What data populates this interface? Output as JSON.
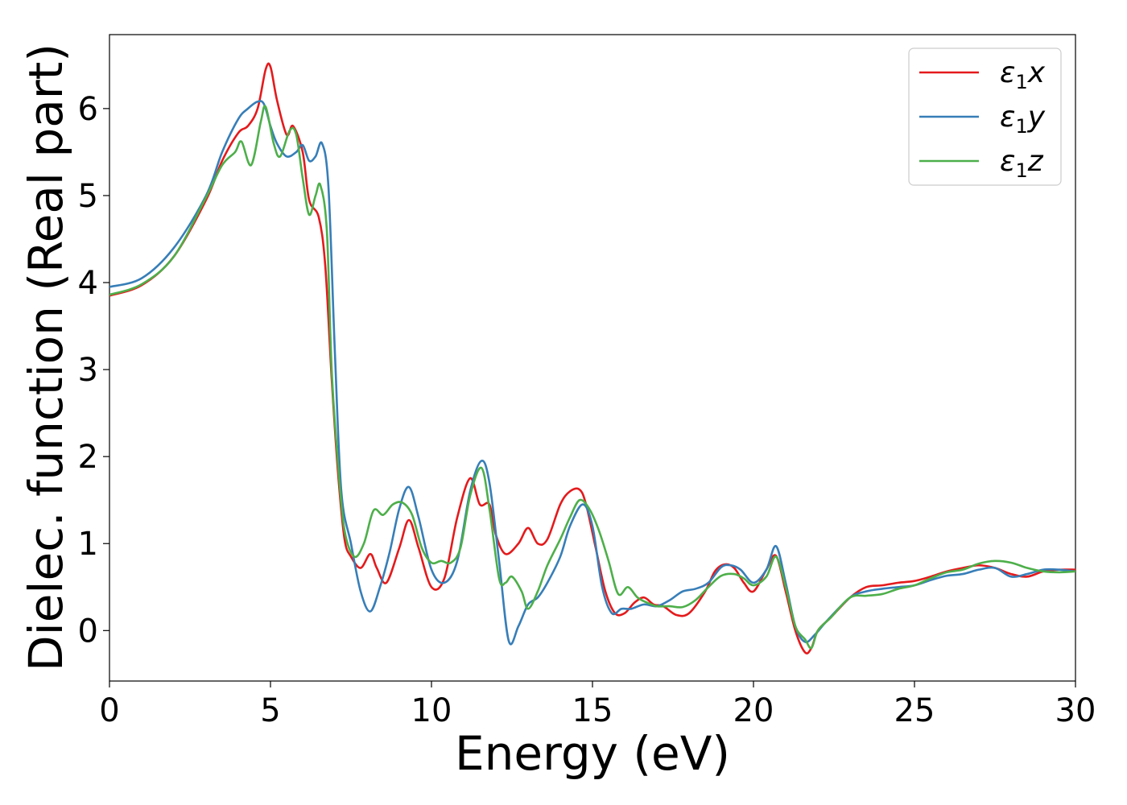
{
  "chart_data": {
    "type": "line",
    "title": "",
    "xlabel": "Energy (eV)",
    "ylabel": "Dielec. function (Real part)",
    "xlim": [
      0,
      30
    ],
    "ylim": [
      -0.58,
      6.85
    ],
    "xticks": [
      "0",
      "5",
      "10",
      "15",
      "20",
      "25",
      "30"
    ],
    "yticks": [
      "0",
      "1",
      "2",
      "3",
      "4",
      "5",
      "6"
    ],
    "grid": false,
    "legend_position": "top-right",
    "series": [
      {
        "name": "ε₁x",
        "legend": {
          "base": "ε",
          "sub": "1",
          "var": "x"
        },
        "color": "#e41a1c",
        "x": [
          0,
          1,
          2,
          3,
          3.5,
          4,
          4.3,
          4.6,
          4.85,
          5.0,
          5.2,
          5.5,
          5.7,
          6.0,
          6.2,
          6.5,
          6.7,
          6.9,
          7.1,
          7.3,
          7.5,
          7.8,
          8.1,
          8.3,
          8.6,
          9.0,
          9.3,
          9.6,
          10.0,
          10.4,
          10.8,
          11.2,
          11.5,
          11.8,
          12.0,
          12.3,
          12.7,
          13.0,
          13.3,
          13.6,
          14.0,
          14.3,
          14.6,
          14.8,
          15.1,
          15.4,
          15.7,
          16.0,
          16.3,
          16.6,
          16.9,
          17.2,
          17.6,
          18.0,
          18.5,
          18.8,
          19.1,
          19.4,
          19.7,
          20.0,
          20.4,
          20.7,
          21.0,
          21.3,
          21.6,
          21.8,
          22.0,
          22.4,
          23.0,
          23.5,
          24.0,
          24.5,
          25.0,
          25.5,
          26.0,
          26.5,
          27.0,
          27.5,
          28.0,
          28.5,
          29.0,
          29.5,
          30.0
        ],
        "y": [
          3.85,
          3.97,
          4.3,
          4.95,
          5.4,
          5.72,
          5.8,
          6.0,
          6.45,
          6.48,
          6.1,
          5.7,
          5.8,
          5.5,
          4.95,
          4.75,
          4.2,
          2.9,
          1.8,
          1.05,
          0.85,
          0.72,
          0.88,
          0.72,
          0.55,
          0.95,
          1.27,
          0.95,
          0.5,
          0.6,
          1.3,
          1.75,
          1.45,
          1.45,
          1.1,
          0.88,
          1.0,
          1.18,
          1.0,
          1.05,
          1.45,
          1.6,
          1.62,
          1.45,
          0.95,
          0.45,
          0.2,
          0.2,
          0.32,
          0.38,
          0.3,
          0.28,
          0.18,
          0.2,
          0.45,
          0.68,
          0.76,
          0.72,
          0.55,
          0.45,
          0.7,
          0.86,
          0.45,
          0.0,
          -0.25,
          -0.2,
          0.0,
          0.15,
          0.38,
          0.5,
          0.52,
          0.55,
          0.57,
          0.62,
          0.68,
          0.72,
          0.75,
          0.72,
          0.65,
          0.62,
          0.68,
          0.7,
          0.7
        ]
      },
      {
        "name": "ε₁y",
        "legend": {
          "base": "ε",
          "sub": "1",
          "var": "y"
        },
        "color": "#377eb8",
        "x": [
          0,
          1,
          2,
          3,
          3.5,
          4,
          4.3,
          4.6,
          4.8,
          5.0,
          5.2,
          5.5,
          5.8,
          6.0,
          6.2,
          6.4,
          6.6,
          6.8,
          7.0,
          7.2,
          7.5,
          7.8,
          8.1,
          8.4,
          8.7,
          9.0,
          9.3,
          9.6,
          10.0,
          10.4,
          10.8,
          11.2,
          11.55,
          11.8,
          12.1,
          12.4,
          12.7,
          13.0,
          13.3,
          13.6,
          14.0,
          14.3,
          14.7,
          15.0,
          15.3,
          15.6,
          15.9,
          16.2,
          16.6,
          17.0,
          17.4,
          17.8,
          18.2,
          18.6,
          19.0,
          19.3,
          19.6,
          20.0,
          20.4,
          20.7,
          21.0,
          21.3,
          21.6,
          21.9,
          22.3,
          23.0,
          23.5,
          24.0,
          24.5,
          25.0,
          25.5,
          26.0,
          26.5,
          27.0,
          27.5,
          28.0,
          28.5,
          29.0,
          29.5,
          30.0
        ],
        "y": [
          3.95,
          4.05,
          4.4,
          5.0,
          5.5,
          5.88,
          6.0,
          6.08,
          6.05,
          5.8,
          5.6,
          5.45,
          5.5,
          5.58,
          5.4,
          5.45,
          5.6,
          5.1,
          3.2,
          1.6,
          1.0,
          0.45,
          0.22,
          0.5,
          0.9,
          1.4,
          1.65,
          1.3,
          0.7,
          0.55,
          0.8,
          1.6,
          1.95,
          1.7,
          0.8,
          -0.12,
          0.05,
          0.3,
          0.38,
          0.55,
          0.85,
          1.2,
          1.45,
          1.2,
          0.5,
          0.2,
          0.25,
          0.25,
          0.3,
          0.28,
          0.35,
          0.45,
          0.48,
          0.55,
          0.73,
          0.75,
          0.7,
          0.55,
          0.7,
          0.97,
          0.55,
          0.05,
          -0.13,
          -0.05,
          0.12,
          0.38,
          0.45,
          0.48,
          0.5,
          0.52,
          0.58,
          0.63,
          0.65,
          0.7,
          0.72,
          0.62,
          0.65,
          0.7,
          0.7,
          0.68
        ]
      },
      {
        "name": "ε₁z",
        "legend": {
          "base": "ε",
          "sub": "1",
          "var": "z"
        },
        "color": "#4daf4a",
        "x": [
          0,
          1,
          2,
          3,
          3.5,
          3.9,
          4.1,
          4.4,
          4.7,
          4.85,
          5.1,
          5.3,
          5.6,
          5.8,
          6.0,
          6.2,
          6.4,
          6.55,
          6.75,
          6.9,
          7.1,
          7.3,
          7.6,
          7.9,
          8.2,
          8.5,
          8.8,
          9.1,
          9.4,
          9.7,
          10.0,
          10.3,
          10.6,
          10.9,
          11.2,
          11.55,
          11.8,
          12.1,
          12.3,
          12.5,
          12.8,
          13.0,
          13.3,
          13.6,
          14.0,
          14.3,
          14.6,
          14.9,
          15.2,
          15.5,
          15.8,
          16.1,
          16.4,
          16.7,
          17.0,
          17.4,
          17.8,
          18.2,
          18.6,
          19.0,
          19.4,
          19.7,
          20.0,
          20.4,
          20.7,
          21.0,
          21.3,
          21.6,
          21.8,
          22.0,
          22.4,
          23.0,
          23.5,
          24.0,
          24.5,
          25.0,
          25.5,
          26.0,
          26.5,
          27.0,
          27.5,
          28.0,
          28.5,
          29.0,
          29.5,
          30.0
        ],
        "y": [
          3.86,
          3.98,
          4.3,
          4.98,
          5.35,
          5.5,
          5.62,
          5.35,
          5.85,
          6.02,
          5.6,
          5.45,
          5.75,
          5.7,
          5.2,
          4.78,
          5.0,
          5.12,
          4.6,
          3.0,
          1.9,
          1.15,
          0.85,
          1.0,
          1.38,
          1.33,
          1.45,
          1.47,
          1.33,
          0.95,
          0.78,
          0.8,
          0.78,
          0.95,
          1.55,
          1.87,
          1.4,
          0.6,
          0.55,
          0.62,
          0.45,
          0.25,
          0.45,
          0.75,
          1.05,
          1.3,
          1.5,
          1.4,
          1.15,
          0.8,
          0.42,
          0.5,
          0.38,
          0.32,
          0.28,
          0.28,
          0.27,
          0.35,
          0.5,
          0.63,
          0.65,
          0.6,
          0.52,
          0.62,
          0.85,
          0.5,
          0.05,
          -0.1,
          -0.2,
          0.0,
          0.15,
          0.38,
          0.4,
          0.42,
          0.48,
          0.52,
          0.6,
          0.67,
          0.7,
          0.77,
          0.8,
          0.78,
          0.72,
          0.68,
          0.67,
          0.68
        ]
      }
    ]
  }
}
